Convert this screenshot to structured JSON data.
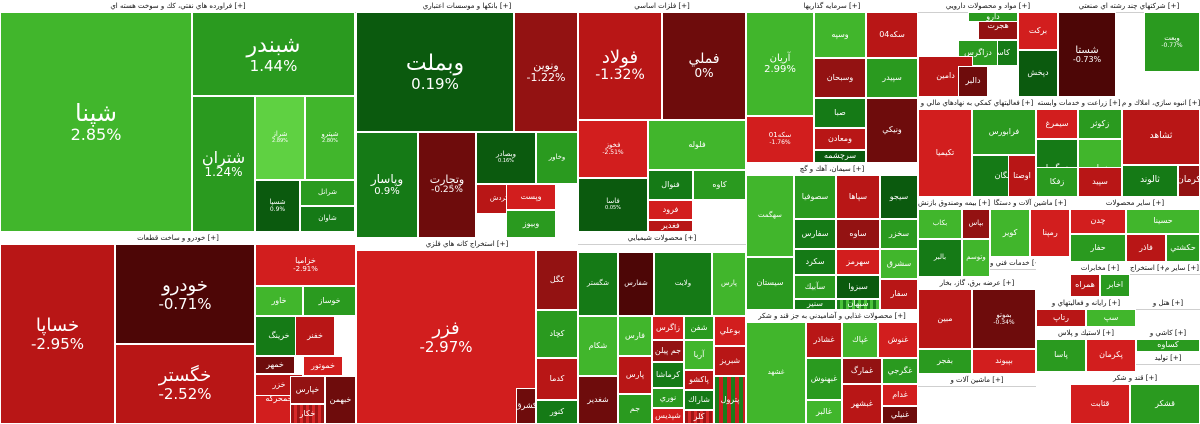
{
  "sectors": [
    {
      "title": "فراورده هاي نفتي، كك و سوخت هسته اي [+]",
      "cells": [
        {
          "n": "شپنا",
          "p": "2.85%"
        },
        {
          "n": "شبندر",
          "p": "1.44%"
        },
        {
          "n": "شتران",
          "p": "1.24%"
        },
        {
          "n": "شراز",
          "p": "2.89%"
        },
        {
          "n": "شپترو",
          "p": "2.80%"
        },
        {
          "n": "شسپا",
          "p": "0.9%"
        },
        {
          "n": "شرانل",
          "p": ""
        },
        {
          "n": "شاوان",
          "p": ""
        }
      ]
    },
    {
      "title": "بانكها و موسسات اعتباري [+]",
      "cells": [
        {
          "n": "وبملت",
          "p": "0.19%"
        },
        {
          "n": "ونوين",
          "p": "-1.22%"
        },
        {
          "n": "وپاسار",
          "p": "0.9%"
        },
        {
          "n": "وتجارت",
          "p": "-0.25%"
        },
        {
          "n": "وبصادر",
          "p": "0.16%"
        },
        {
          "n": "وخاور",
          "p": ""
        },
        {
          "n": "وکردش",
          "p": ""
        },
        {
          "n": "وپست",
          "p": ""
        },
        {
          "n": "وبيوز",
          "p": ""
        }
      ]
    },
    {
      "title": "فلزات اساسي [+]",
      "cells": [
        {
          "n": "فولاد",
          "p": "-1.32%"
        },
        {
          "n": "فملي",
          "p": "0%"
        },
        {
          "n": "فلوله",
          "p": ""
        },
        {
          "n": "فخوز",
          "p": "-2.51%"
        },
        {
          "n": "فنوال",
          "p": ""
        },
        {
          "n": "كاوه",
          "p": ""
        },
        {
          "n": "فاسا",
          "p": "0.05%"
        },
        {
          "n": "فرود",
          "p": ""
        },
        {
          "n": "فغدير",
          "p": ""
        }
      ]
    },
    {
      "title": "سرمايه گذاريها [+]",
      "cells": [
        {
          "n": "آريان",
          "p": "2.99%"
        },
        {
          "n": "وسپه",
          "p": ""
        },
        {
          "n": "سکه04",
          "p": ""
        },
        {
          "n": "سپيدر",
          "p": ""
        },
        {
          "n": "وسبحان",
          "p": ""
        },
        {
          "n": "صبا",
          "p": ""
        },
        {
          "n": "ومعادن",
          "p": ""
        },
        {
          "n": "سکه01",
          "p": "-1.76%"
        },
        {
          "n": "سرچشمه",
          "p": ""
        },
        {
          "n": "ونيكي",
          "p": ""
        }
      ]
    },
    {
      "title": "مواد و محصولات دارويي [+]",
      "cells": [
        {
          "n": "هجرت",
          "p": ""
        },
        {
          "n": "كاسپين",
          "p": ""
        },
        {
          "n": "دارو",
          "p": ""
        },
        {
          "n": "دزاگرس",
          "p": ""
        },
        {
          "n": "دامين",
          "p": ""
        },
        {
          "n": "دالبر",
          "p": ""
        },
        {
          "n": "بركت",
          "p": ""
        },
        {
          "n": "دپخش",
          "p": ""
        }
      ]
    },
    {
      "title": "شركتهاي چند رشته اي صنعتي [+]",
      "cells": [
        {
          "n": "شستا",
          "p": "-0.73%"
        },
        {
          "n": "وبعت",
          "p": "-0.77%"
        }
      ]
    },
    {
      "title": "خودرو و ساخت قطعات [+]",
      "cells": [
        {
          "n": "خساپا",
          "p": "-2.95%"
        },
        {
          "n": "خودرو",
          "p": "-0.71%"
        },
        {
          "n": "خگستر",
          "p": "-2.52%"
        },
        {
          "n": "خزاميا",
          "p": "-2.91%"
        },
        {
          "n": "خاور",
          "p": ""
        },
        {
          "n": "خوساز",
          "p": ""
        },
        {
          "n": "خرينگ",
          "p": ""
        },
        {
          "n": "خمحركه",
          "p": ""
        },
        {
          "n": "ختوقا",
          "p": ""
        },
        {
          "n": "خفنر",
          "p": ""
        },
        {
          "n": "خموتور",
          "p": ""
        },
        {
          "n": "خمهر",
          "p": ""
        },
        {
          "n": "خزر",
          "p": ""
        },
        {
          "n": "خپارس",
          "p": ""
        },
        {
          "n": "خبهمن",
          "p": ""
        },
        {
          "n": "خكار",
          "p": ""
        }
      ]
    },
    {
      "title": "استخراج كانه هاي فلزي [+]",
      "cells": [
        {
          "n": "فزر",
          "p": "-2.97%"
        },
        {
          "n": "كگل",
          "p": ""
        },
        {
          "n": "كچاد",
          "p": ""
        },
        {
          "n": "كدما",
          "p": ""
        },
        {
          "n": "كنور",
          "p": ""
        },
        {
          "n": "كشرق",
          "p": ""
        }
      ]
    },
    {
      "title": "محصولات شيميايي [+]",
      "cells": [
        {
          "n": "شگستر",
          "p": ""
        },
        {
          "n": "شكام",
          "p": ""
        },
        {
          "n": "شغدير",
          "p": ""
        },
        {
          "n": "فارس",
          "p": ""
        },
        {
          "n": "پارس",
          "p": ""
        },
        {
          "n": "جم",
          "p": ""
        },
        {
          "n": "شيراز",
          "p": ""
        },
        {
          "n": "جم پيلن",
          "p": ""
        },
        {
          "n": "شفن",
          "p": ""
        },
        {
          "n": "آريا",
          "p": ""
        },
        {
          "n": "بوعلي",
          "p": ""
        },
        {
          "n": "كرماشا",
          "p": ""
        },
        {
          "n": "پاكشو",
          "p": ""
        },
        {
          "n": "نوري",
          "p": ""
        },
        {
          "n": "شاراك",
          "p": ""
        },
        {
          "n": "شپديس",
          "p": ""
        },
        {
          "n": "شبريز",
          "p": ""
        },
        {
          "n": "پترول",
          "p": ""
        },
        {
          "n": "شاوان",
          "p": ""
        },
        {
          "n": "ولايت",
          "p": ""
        },
        {
          "n": "پارس",
          "p": ""
        },
        {
          "n": "كلر",
          "p": ""
        },
        {
          "n": "شفارس",
          "p": ""
        },
        {
          "n": "زاگرس",
          "p": ""
        }
      ]
    },
    {
      "title": "سيمان، آهك و گچ [+]",
      "cells": [
        {
          "n": "سصوفيا",
          "p": ""
        },
        {
          "n": "سپاها",
          "p": ""
        },
        {
          "n": "سهگمت",
          "p": ""
        },
        {
          "n": "سفارس",
          "p": ""
        },
        {
          "n": "ساوه",
          "p": ""
        },
        {
          "n": "سيجو",
          "p": ""
        },
        {
          "n": "سخزر",
          "p": ""
        },
        {
          "n": "سكرد",
          "p": ""
        },
        {
          "n": "سهرمز",
          "p": ""
        },
        {
          "n": "سشرق",
          "p": ""
        },
        {
          "n": "سآبيك",
          "p": ""
        },
        {
          "n": "سبزوا",
          "p": ""
        },
        {
          "n": "سفار",
          "p": ""
        },
        {
          "n": "سيستان",
          "p": ""
        },
        {
          "n": "سنير",
          "p": ""
        },
        {
          "n": "سبهان",
          "p": ""
        }
      ]
    },
    {
      "title": "محصولات غذايي و آشاميدني به جز قند و شكر [+]",
      "cells": [
        {
          "n": "غشهد",
          "p": ""
        },
        {
          "n": "غشاذر",
          "p": ""
        },
        {
          "n": "غپاك",
          "p": ""
        },
        {
          "n": "غنوش",
          "p": ""
        },
        {
          "n": "غمارگ",
          "p": ""
        },
        {
          "n": "غبهنوش",
          "p": ""
        },
        {
          "n": "غبشهر",
          "p": ""
        },
        {
          "n": "غگرجي",
          "p": ""
        },
        {
          "n": "غشصفا",
          "p": ""
        },
        {
          "n": "غدام",
          "p": ""
        },
        {
          "n": "غنيلي",
          "p": ""
        },
        {
          "n": "غالبر",
          "p": ""
        }
      ]
    },
    {
      "title": "زراعت و خدمات وابسته [+]",
      "cells": [
        {
          "n": "سيمرغ",
          "p": ""
        },
        {
          "n": "زكوثر",
          "p": ""
        },
        {
          "n": "زمگسا",
          "p": ""
        },
        {
          "n": "زماه",
          "p": ""
        },
        {
          "n": "سپيد",
          "p": ""
        },
        {
          "n": "زفكا",
          "p": ""
        }
      ]
    },
    {
      "title": "انبوه سازي، املاك و م [+]",
      "cells": [
        {
          "n": "ثشاهد",
          "p": ""
        },
        {
          "n": "ثالوند",
          "p": ""
        },
        {
          "n": "كرمان",
          "p": ""
        }
      ]
    },
    {
      "title": "فعاليتهاي كمكي به نهادهاي مالي و [+]",
      "cells": [
        {
          "n": "تكيميا",
          "p": ""
        },
        {
          "n": "فرابورس",
          "p": ""
        },
        {
          "n": "زنگان",
          "p": ""
        },
        {
          "n": "اوصتا",
          "p": ""
        }
      ]
    },
    {
      "title": "بيمه وصندوق بازنش [+]",
      "cells": [
        {
          "n": "بكاب",
          "p": ""
        },
        {
          "n": "بپاس",
          "p": ""
        },
        {
          "n": "بالبر",
          "p": ""
        },
        {
          "n": "وتوسم",
          "p": ""
        }
      ]
    },
    {
      "title": "ماشين آلات و دستگا [+]",
      "cells": [
        {
          "n": "كوير",
          "p": ""
        },
        {
          "n": "رمپنا",
          "p": ""
        }
      ]
    },
    {
      "title": "سایر محصولات [+]",
      "cells": [
        {
          "n": "چدن",
          "p": ""
        },
        {
          "n": "حسينا",
          "p": ""
        },
        {
          "n": "حفار",
          "p": ""
        },
        {
          "n": "فاذر",
          "p": ""
        },
        {
          "n": "حكشتي",
          "p": ""
        }
      ]
    },
    {
      "title": "حمل ونقل، انبارد [+]",
      "cells": []
    },
    {
      "title": "عرضه برق، گاز، بخار [+]",
      "cells": [
        {
          "n": "بموتو",
          "p": "-0.34%"
        },
        {
          "n": "مبين",
          "p": ""
        },
        {
          "n": "بفجر",
          "p": ""
        },
        {
          "n": "بپيوند",
          "p": ""
        }
      ]
    },
    {
      "title": "خدمات فني و [+]",
      "cells": []
    },
    {
      "title": "مخابرات [+]",
      "cells": [
        {
          "n": "همراه",
          "p": ""
        },
        {
          "n": "اخابر",
          "p": ""
        }
      ]
    },
    {
      "title": "استخراج [+]",
      "cells": []
    },
    {
      "title": "سایر م [+]",
      "cells": []
    },
    {
      "title": "لاستيك و پلاس [+]",
      "cells": [
        {
          "n": "پاسا",
          "p": ""
        },
        {
          "n": "پكرمان",
          "p": ""
        }
      ]
    },
    {
      "title": "رايانه و فعاليتهاي و [+]",
      "cells": [
        {
          "n": "رتاپ",
          "p": ""
        },
        {
          "n": "سپ",
          "p": ""
        }
      ]
    },
    {
      "title": "ماشين آلات و [+]",
      "cells": []
    },
    {
      "title": "قند و شكر [+]",
      "cells": [
        {
          "n": "قثابت",
          "p": ""
        },
        {
          "n": "قشكر",
          "p": ""
        }
      ]
    },
    {
      "title": "هتل و [+]",
      "cells": []
    },
    {
      "title": "كاشي و [+]",
      "cells": [
        {
          "n": "كساوه",
          "p": ""
        }
      ]
    },
    {
      "title": "توليد [+]",
      "cells": []
    }
  ]
}
